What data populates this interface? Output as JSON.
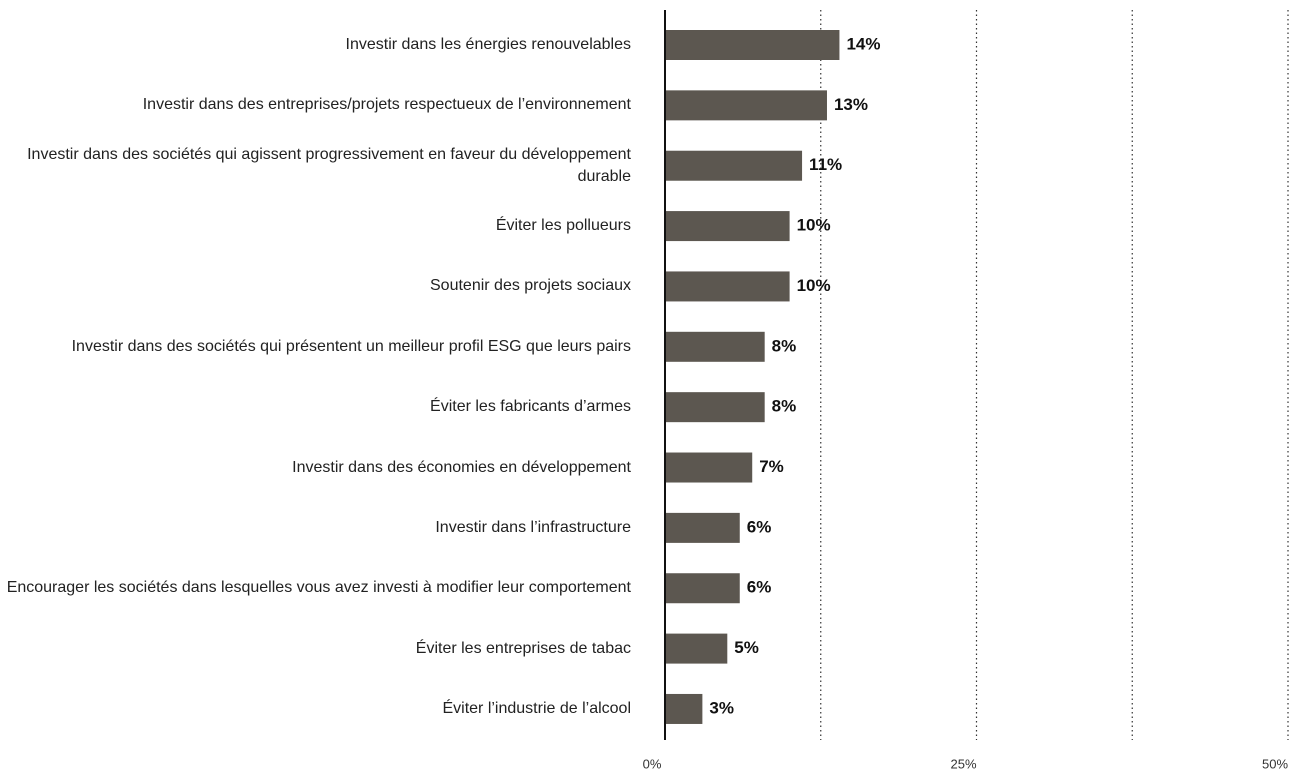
{
  "chart_data": {
    "type": "barh",
    "categories": [
      "Investir dans les énergies renouvelables",
      "Investir dans des entreprises/projets respectueux de l’environnement",
      "Investir dans des sociétés qui agissent progressivement en faveur du développement durable",
      "Éviter les pollueurs",
      "Soutenir des projets sociaux",
      "Investir dans des sociétés qui présentent un meilleur profil ESG que leurs pairs",
      "Éviter les fabricants d’armes",
      "Investir dans des économies en développement",
      "Investir dans l’infrastructure",
      "Encourager les sociétés dans lesquelles vous avez investi à modifier leur comportement",
      "Éviter les entreprises de tabac",
      "Éviter l’industrie de l’alcool"
    ],
    "values": [
      14,
      13,
      11,
      10,
      10,
      8,
      8,
      7,
      6,
      6,
      5,
      3
    ],
    "value_labels": [
      "14%",
      "13%",
      "11%",
      "10%",
      "10%",
      "8%",
      "8%",
      "7%",
      "6%",
      "6%",
      "5%",
      "3%"
    ],
    "color": "#5c5750",
    "xlim": [
      0,
      50
    ],
    "xticks": [
      {
        "value": 0,
        "label": "0%"
      },
      {
        "value": 25,
        "label": "25%"
      },
      {
        "value": 50,
        "label": "50%"
      }
    ],
    "minor_xticks": [
      12.5,
      37.5
    ],
    "grid": true
  }
}
